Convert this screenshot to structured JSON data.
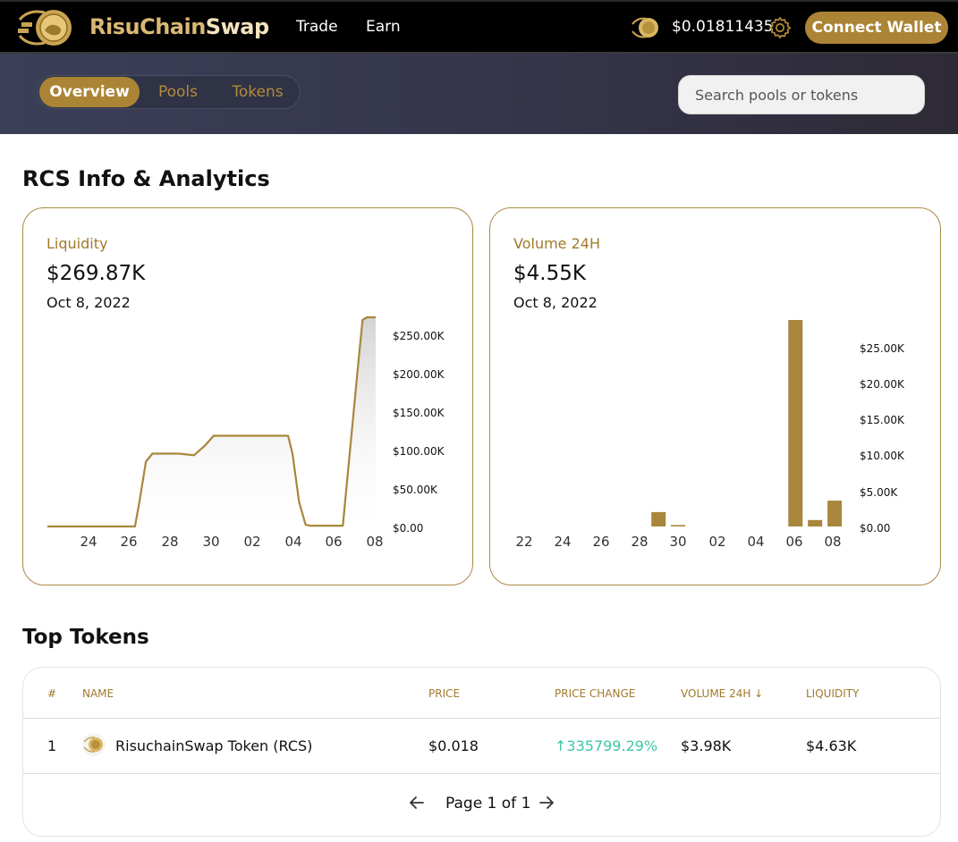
{
  "header": {
    "brand_part1": "RisuChain",
    "brand_part2": "Swap",
    "nav": [
      {
        "label": "Trade"
      },
      {
        "label": "Earn"
      }
    ],
    "token_price": "$0.01811435",
    "connect_label": "Connect Wallet",
    "icons": {
      "logo": "risu-coin-logo",
      "price": "risu-coin-icon",
      "settings": "gear-icon"
    },
    "accent_color": "#ab8435"
  },
  "subnav": {
    "tabs": [
      {
        "label": "Overview",
        "active": true
      },
      {
        "label": "Pools"
      },
      {
        "label": "Tokens"
      }
    ],
    "search_placeholder": "Search pools or tokens"
  },
  "page_title": "RCS Info & Analytics",
  "liquidity": {
    "label": "Liquidity",
    "value": "$269.87K",
    "date": "Oct 8, 2022"
  },
  "volume": {
    "label": "Volume 24H",
    "value": "$4.55K",
    "date": "Oct 8, 2022"
  },
  "chart_data": [
    {
      "type": "area",
      "title": "Liquidity",
      "x_ticks": [
        "24",
        "26",
        "28",
        "30",
        "02",
        "04",
        "06",
        "08"
      ],
      "y_ticks": [
        "$0.00",
        "$50.00K",
        "$100.00K",
        "$150.00K",
        "$200.00K",
        "$250.00K"
      ],
      "ylim": [
        0,
        255000
      ],
      "x": [
        0,
        4,
        4.2,
        4.5,
        4.8,
        5,
        6,
        6.7,
        7.2,
        7.6,
        8,
        9.5,
        11,
        11.2,
        11.5,
        11.8,
        12,
        13.5,
        14.2,
        14.4,
        14.6,
        14.8,
        15
      ],
      "values": [
        0,
        0,
        30000,
        80000,
        90000,
        90000,
        90000,
        88000,
        100000,
        112000,
        112000,
        112000,
        112000,
        90000,
        30000,
        2000,
        1000,
        1000,
        200000,
        255000,
        260000,
        262000,
        262000
      ],
      "grid": false,
      "color": "#a8863c"
    },
    {
      "type": "bar",
      "title": "Volume 24H",
      "x_ticks": [
        "22",
        "24",
        "26",
        "28",
        "30",
        "02",
        "04",
        "06",
        "08"
      ],
      "y_ticks": [
        "$0.00",
        "$5.00K",
        "$10.00K",
        "$15.00K",
        "$20.00K",
        "$25.00K"
      ],
      "ylim": [
        0,
        28750
      ],
      "x": [
        7,
        8,
        14,
        15,
        16
      ],
      "values": [
        2000,
        200,
        28750,
        900,
        3600
      ],
      "grid": false,
      "color": "#a8863c"
    }
  ],
  "top_tokens": {
    "title": "Top Tokens",
    "columns": [
      "#",
      "NAME",
      "PRICE",
      "PRICE CHANGE",
      "VOLUME 24H ↓",
      "LIQUIDITY"
    ],
    "rows": [
      {
        "rank": "1",
        "name": "RisuchainSwap Token  (RCS)",
        "price": "$0.018",
        "change": "↑335799.29%",
        "volume": "$3.98K",
        "liquidity": "$4.63K",
        "change_color": "#3cc7a6"
      }
    ],
    "pagination": "Page 1 of 1"
  }
}
